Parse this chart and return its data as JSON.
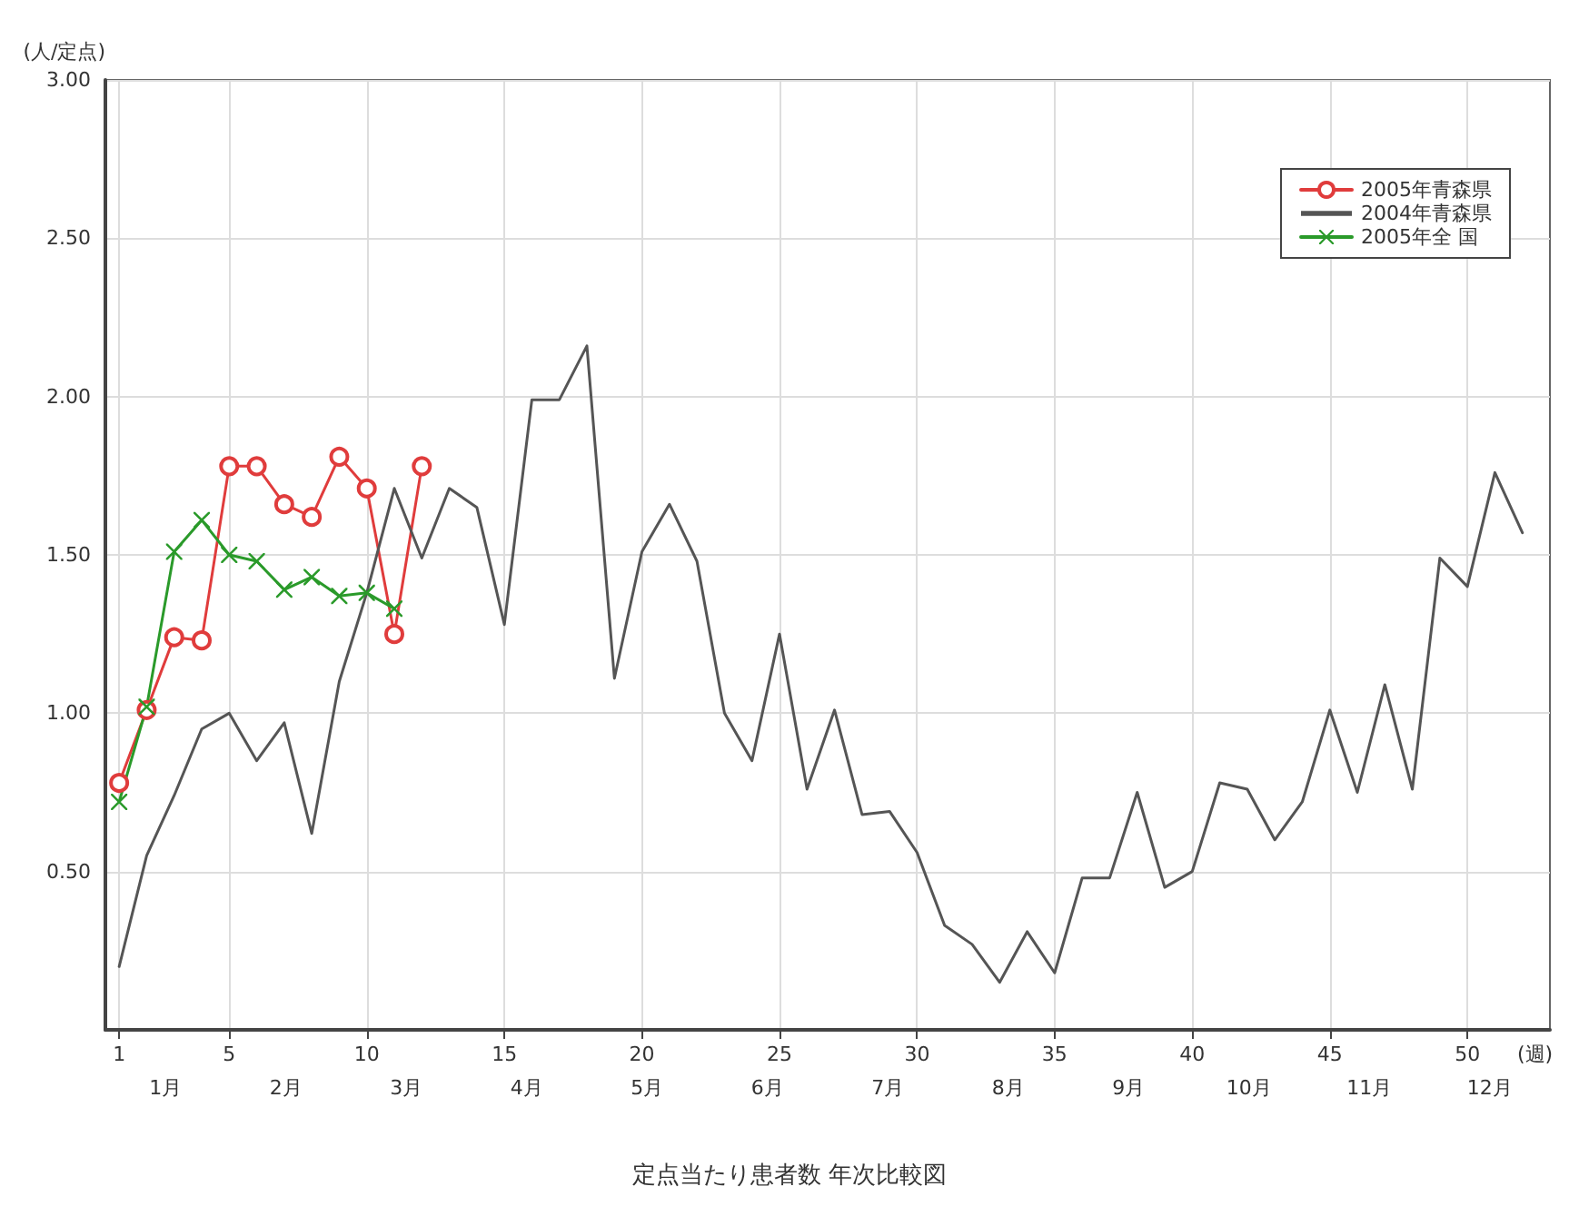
{
  "chart_data": {
    "type": "line",
    "title": "定点当たり患者数 年次比較図",
    "xlabel": "(週)",
    "ylabel": "(人/定点)",
    "xlim": [
      0.5,
      53
    ],
    "xticks": [
      1,
      5,
      10,
      15,
      20,
      25,
      30,
      35,
      40,
      45,
      50
    ],
    "annotations": [
      "1月",
      "2月",
      "3月",
      "4月",
      "5月",
      "6月",
      "7月",
      "8月",
      "9月",
      "10月",
      "11月",
      "12月"
    ],
    "ylim": [
      0,
      3
    ],
    "yticks": [
      {
        "value": 0.5,
        "label": "0.50"
      },
      {
        "value": 1,
        "label": "1.00"
      },
      {
        "value": 1.5,
        "label": "1.50"
      },
      {
        "value": 2,
        "label": "2.00"
      },
      {
        "value": 2.5,
        "label": "2.50"
      },
      {
        "value": 3,
        "label": "3.00"
      }
    ],
    "grid": true,
    "legend": "top right",
    "series": [
      {
        "name": "2005年青森県",
        "color": "#e03c3c",
        "marker": "circle",
        "x": [
          1,
          2,
          3,
          4,
          5,
          6,
          7,
          8,
          9,
          10,
          11,
          12
        ],
        "values": [
          0.78,
          1.01,
          1.24,
          1.23,
          1.78,
          1.78,
          1.66,
          1.62,
          1.81,
          1.71,
          1.25,
          1.78
        ]
      },
      {
        "name": "2004年青森県",
        "color": "#555555",
        "marker": "none",
        "x": [
          1,
          2,
          3,
          4,
          5,
          6,
          7,
          8,
          9,
          10,
          11,
          12,
          13,
          14,
          15,
          16,
          17,
          18,
          19,
          20,
          21,
          22,
          23,
          24,
          25,
          26,
          27,
          28,
          29,
          30,
          31,
          32,
          33,
          34,
          35,
          36,
          37,
          38,
          39,
          40,
          41,
          42,
          43,
          44,
          45,
          46,
          47,
          48,
          49,
          50,
          51,
          52
        ],
        "values": [
          0.2,
          0.55,
          0.74,
          0.95,
          1.0,
          0.85,
          0.97,
          0.62,
          1.1,
          1.38,
          1.71,
          1.49,
          1.71,
          1.65,
          1.28,
          1.99,
          1.99,
          2.16,
          1.11,
          1.51,
          1.66,
          1.48,
          1.0,
          0.85,
          1.25,
          0.76,
          1.01,
          0.68,
          0.69,
          0.56,
          0.33,
          0.27,
          0.15,
          0.31,
          0.18,
          0.48,
          0.48,
          0.75,
          0.45,
          0.5,
          0.78,
          0.76,
          0.6,
          0.72,
          1.01,
          0.75,
          1.09,
          0.76,
          1.49,
          1.4,
          1.76,
          1.57
        ]
      },
      {
        "name": "2005年全 国",
        "color": "#2a9a2a",
        "marker": "cross",
        "x": [
          1,
          2,
          3,
          4,
          5,
          6,
          7,
          8,
          9,
          10,
          11
        ],
        "values": [
          0.72,
          1.02,
          1.51,
          1.61,
          1.5,
          1.48,
          1.39,
          1.43,
          1.37,
          1.38,
          1.33
        ]
      }
    ]
  }
}
